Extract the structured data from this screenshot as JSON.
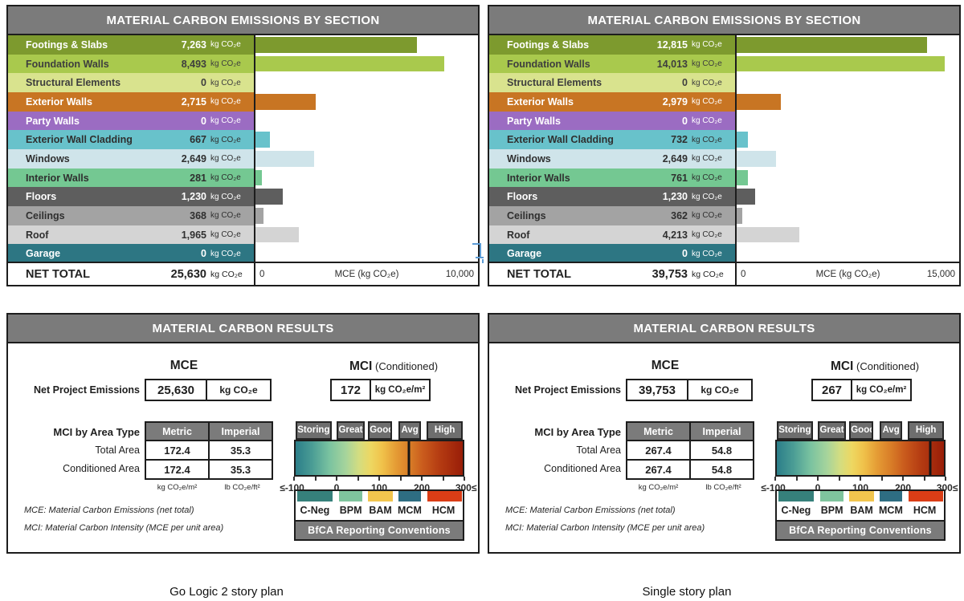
{
  "strings": {
    "chart_title": "MATERIAL CARBON EMISSIONS BY SECTION",
    "results_title": "MATERIAL CARBON RESULTS",
    "net_total_label": "NET TOTAL",
    "mce_heading": "MCE",
    "mci_heading": "MCI",
    "mci_heading_suffix": "(Conditioned)",
    "net_project_emissions": "Net Project Emissions",
    "kg_co2e": "kg CO₂e",
    "kg_co2e_m2": "kg CO₂e/m²",
    "lb_co2e_ft2": "lb CO₂e/ft²",
    "mci_by_area_type": "MCI by Area Type",
    "metric": "Metric",
    "imperial": "Imperial",
    "total_area": "Total Area",
    "conditioned_area": "Conditioned Area",
    "footnote_mce": "MCE: Material Carbon Emissions (net total)",
    "footnote_mci": "MCI: Material Carbon Intensity (MCE per unit area)",
    "conventions": "BfCA Reporting Conventions"
  },
  "colors": {
    "panel_border": "#1d1d1d",
    "header_bg": "#7b7b7b",
    "header_text": "#ffffff",
    "scale_tab_bg": "#6e6e6e",
    "marker": "#151515",
    "selection_artifact": "#5b9bd5"
  },
  "scale": {
    "min": -100,
    "max": 300,
    "tabs": [
      "Storing",
      "Great",
      "Good",
      "Avg",
      "High"
    ],
    "tick_labels": [
      "≤-100",
      "0",
      "100",
      "200",
      "300≤"
    ],
    "gradient_stops": [
      "#2b7e89 0%",
      "#4b9d95 10%",
      "#79c2a0 20%",
      "#a6d49c 30%",
      "#d4dd80 38%",
      "#eed761 45%",
      "#f0c14a 52%",
      "#e59c35 60%",
      "#d97e28 68%",
      "#ca5c1d 76%",
      "#b53c12 86%",
      "#991d08 100%"
    ]
  },
  "legend": {
    "items": [
      {
        "label": "C-Neg",
        "color": "#36807b"
      },
      {
        "label": "BPM",
        "color": "#7fc49e"
      },
      {
        "label": "BAM",
        "color": "#f2c54e"
      },
      {
        "label": "MCM",
        "color": "#2e6d82"
      },
      {
        "label": "HCM",
        "color": "#da3d16"
      }
    ]
  },
  "chart_data": [
    {
      "type": "bar",
      "orientation": "horizontal",
      "title": "MATERIAL CARBON EMISSIONS BY SECTION",
      "caption": "Go Logic 2 story plan",
      "categories": [
        "Footings & Slabs",
        "Foundation Walls",
        "Structural Elements",
        "Exterior Walls",
        "Party Walls",
        "Exterior Wall Cladding",
        "Windows",
        "Interior Walls",
        "Floors",
        "Ceilings",
        "Roof",
        "Garage"
      ],
      "values": [
        7263,
        8493,
        0,
        2715,
        0,
        667,
        2649,
        281,
        1230,
        368,
        1965,
        0
      ],
      "value_labels": [
        "7,263",
        "8,493",
        "0",
        "2,715",
        "0",
        "667",
        "2,649",
        "281",
        "1,230",
        "368",
        "1,965",
        "0"
      ],
      "unit": "kg CO₂e",
      "net_total": 25630,
      "net_total_label": "25,630",
      "xlabel": "MCE (kg CO₂e)",
      "xlim": [
        0,
        10000
      ],
      "x_tick_labels": [
        "0",
        "10,000"
      ],
      "bar_colors": [
        "#7d9a2e",
        "#a9c94d",
        "#d9e38e",
        "#c87523",
        "#9b6cc2",
        "#68c2cb",
        "#cfe4ea",
        "#74c892",
        "#5e5e5e",
        "#a3a3a3",
        "#d4d4d4",
        "#2d7683"
      ],
      "row_text_colors": [
        "#ffffff",
        "#3e3e3e",
        "#3e3e3e",
        "#ffffff",
        "#ffffff",
        "#2f2f2f",
        "#2f2f2f",
        "#2f2f2f",
        "#ffffff",
        "#2f2f2f",
        "#2f2f2f",
        "#ffffff"
      ]
    },
    {
      "type": "bar",
      "orientation": "horizontal",
      "title": "MATERIAL CARBON EMISSIONS BY SECTION",
      "caption": "Single story plan",
      "categories": [
        "Footings & Slabs",
        "Foundation Walls",
        "Structural Elements",
        "Exterior Walls",
        "Party Walls",
        "Exterior Wall Cladding",
        "Windows",
        "Interior Walls",
        "Floors",
        "Ceilings",
        "Roof",
        "Garage"
      ],
      "values": [
        12815,
        14013,
        0,
        2979,
        0,
        732,
        2649,
        761,
        1230,
        362,
        4213,
        0
      ],
      "value_labels": [
        "12,815",
        "14,013",
        "0",
        "2,979",
        "0",
        "732",
        "2,649",
        "761",
        "1,230",
        "362",
        "4,213",
        "0"
      ],
      "unit": "kg CO₂e",
      "net_total": 39753,
      "net_total_label": "39,753",
      "xlabel": "MCE (kg CO₂e)",
      "xlim": [
        0,
        15000
      ],
      "x_tick_labels": [
        "0",
        "15,000"
      ],
      "bar_colors": [
        "#7d9a2e",
        "#a9c94d",
        "#d9e38e",
        "#c87523",
        "#9b6cc2",
        "#68c2cb",
        "#cfe4ea",
        "#74c892",
        "#5e5e5e",
        "#a3a3a3",
        "#d4d4d4",
        "#2d7683"
      ],
      "row_text_colors": [
        "#ffffff",
        "#3e3e3e",
        "#3e3e3e",
        "#ffffff",
        "#ffffff",
        "#2f2f2f",
        "#2f2f2f",
        "#2f2f2f",
        "#ffffff",
        "#2f2f2f",
        "#2f2f2f",
        "#ffffff"
      ]
    }
  ],
  "results": [
    {
      "mce_value": "25,630",
      "mci_value": "172",
      "mci_num": 172,
      "total_area_metric": "172.4",
      "total_area_imperial": "35.3",
      "conditioned_area_metric": "172.4",
      "conditioned_area_imperial": "35.3"
    },
    {
      "mce_value": "39,753",
      "mci_value": "267",
      "mci_num": 267,
      "total_area_metric": "267.4",
      "total_area_imperial": "54.8",
      "conditioned_area_metric": "267.4",
      "conditioned_area_imperial": "54.8"
    }
  ],
  "captions": {
    "left": "Go Logic 2 story plan",
    "right": "Single story plan"
  }
}
